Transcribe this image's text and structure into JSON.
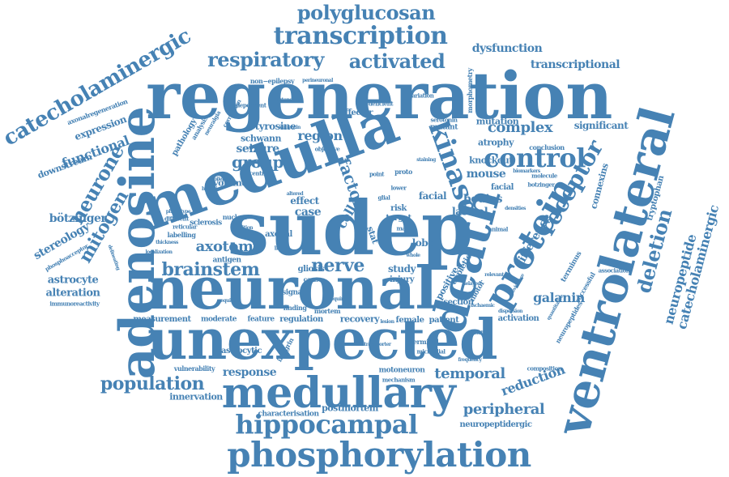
{
  "color": "#4682b4",
  "words": {
    "regeneration": "regeneration",
    "sudep": "sudep",
    "neuronal": "neuronal",
    "unexpected": "unexpected",
    "medulla": "medulla",
    "adenosine": "adenosine",
    "ventrolateral": "ventrolateral",
    "death": "death",
    "medullary": "medullary",
    "phosphorylation": "phosphorylation",
    "hippocampal": "hippocampal",
    "transcription": "transcription",
    "polyglucosan": "polyglucosan",
    "catecholaminergic": "catecholaminergic",
    "catecholaminergic2": "catecholaminergic",
    "respiratory": "respiratory",
    "activated": "activated",
    "kinase": "kinase",
    "control": "control",
    "proteinrelated": "protein",
    "receptor": "receptor",
    "neurone": "neurone",
    "mitogen": "mitogen",
    "population": "population",
    "brainstem": "brainstem",
    "nerve": "nerve",
    "axotomy": "axotomy",
    "temporal": "temporal",
    "response": "response",
    "peripheral": "peripheral",
    "reduction": "reduction",
    "deletion": "deletion",
    "neuropeptide": "neuropeptide",
    "galanin": "galanin",
    "group": "group",
    "factor": "factor",
    "cell": "cell",
    "seizure": "seizure",
    "region": "region",
    "tyrosine": "tyrosine",
    "functional": "functional",
    "complex": "complex",
    "significant": "significant",
    "dysfunction": "dysfunction",
    "transcriptional": "transcriptional",
    "bötzinger": "bötzinger",
    "stereology": "stereology",
    "astrocyte": "astrocyte",
    "alteration": "alteration",
    "expression": "expression",
    "downstream": "downstream",
    "difference": "difference",
    "mouse": "mouse",
    "facial": "facial",
    "bodies": "bodies",
    "lateral": "lateral",
    "knockout": "knockout",
    "atrophy": "atrophy",
    "mutation": "mutation",
    "case": "case",
    "effect": "effect",
    "volume": "volume",
    "schwann": "schwann",
    "axonal": "axonal",
    "gliosis": "gliosis",
    "study": "study",
    "injury": "injury",
    "lobe": "lobe",
    "measurement": "measurement",
    "moderate": "moderate",
    "feature": "feature",
    "regulation": "regulation",
    "recovery": "recovery",
    "female": "female",
    "patient": "patient",
    "activation": "activation",
    "astrocytic": "astrocytic",
    "innervation": "innervation",
    "motoneuron": "motoneuron",
    "characterisation": "characterisation",
    "postmortem": "postmortem",
    "neuropeptidergic": "neuropeptidergic",
    "tryptophan": "tryptophan",
    "connexins": "connexins",
    "vulnerability": "vulnerability",
    "immunoreactivity": "immunoreactivity",
    "antigen": "antigen",
    "sclerosis": "sclerosis",
    "labelling": "labelling",
    "reticular": "reticular",
    "different": "different",
    "nuclear": "nuclear",
    "pathology": "pathology",
    "phosphoacceptor": "phosphoacceptor",
    "axonalregeneration": "axonalregeneration",
    "nonepilepsy": "non−epilepsy",
    "perineuronal": "perineuronal",
    "dependent": "dependent",
    "autonomic": "autonomic",
    "effector": "effector",
    "mutant": "mutant",
    "serotonin": "serotonin",
    "deficient": "deficient",
    "variation": "variation",
    "morphometry": "morphometry",
    "conclusion": "conclusion",
    "molecule": "molecule",
    "animal": "animal",
    "depletion": "depletion",
    "composition": "composition",
    "terminal": "terminal",
    "microglial": "microglial",
    "integrin": "integrin",
    "mechanism": "mechanism",
    "signal": "signal",
    "cause": "cause",
    "finding": "finding",
    "mortem": "mortem",
    "risk": "risk",
    "target": "target",
    "positive": "positive",
    "section": "section",
    "motor": "motor",
    "association": "association",
    "successful": "successful",
    "terminus": "terminus",
    "central": "central",
    "point": "point",
    "lower": "lower",
    "proto": "proto",
    "male": "male",
    "index": "index",
    "epilepsy": "epilepsy",
    "hypoxic": "hypoxic",
    "correlation": "correlation",
    "neuralgia": "neuralgia",
    "analysis": "analysis",
    "required": "required",
    "localization": "localization",
    "thickness": "thickness",
    "delineating": "delineating",
    "phenotype": "phenotype",
    "vimentin": "vimentin",
    "objective": "objective",
    "staining": "staining",
    "glial": "glial",
    "delayed": "delayed",
    "relevant": "relevant",
    "biomarkers": "biomarkers",
    "densities": "densities",
    "evidence": "evidence",
    "botzinger": "botzinger",
    "quantitative": "quantitative",
    "dispersion": "dispersion",
    "ischaemic": "ischaemic",
    "altered": "altered",
    "addition": "addition",
    "transporter": "transporter",
    "frequency": "frequency",
    "stat": "stat",
    "whole": "whole",
    "neuropeptides": "neuropeptides",
    "lesion": "lesion",
    "cytosolic": "cytosolic"
  }
}
